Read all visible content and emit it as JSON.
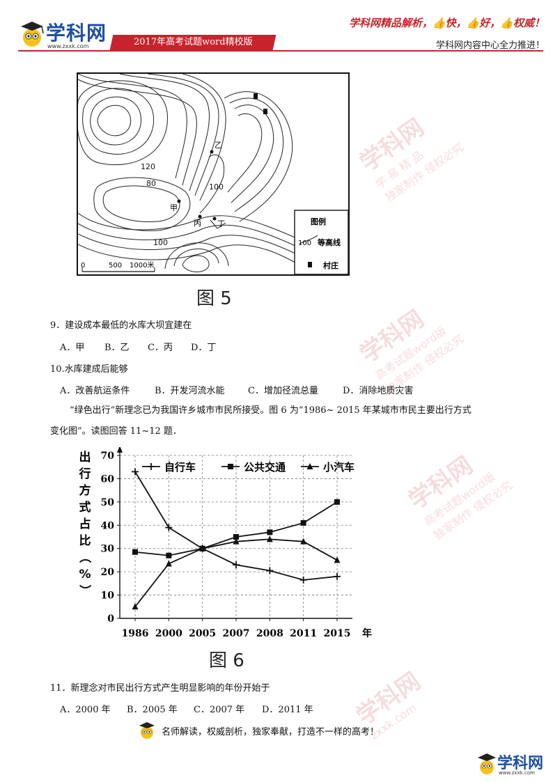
{
  "header": {
    "logo_name": "学科网",
    "logo_url": "www.zxxk.com",
    "banner": "2017年高考试题word精校版",
    "slogan": "学科网精品解析，👍快，👍好，👍权威！",
    "tagline": "学科网内容中心全力推进！"
  },
  "watermark": {
    "big": "学科网",
    "url": "zxxk.com",
    "line1": "学 易 精 品",
    "line2": "高考试题word版",
    "line3": "独家制作 侵权必究"
  },
  "figure5": {
    "caption": "图 5",
    "labels": {
      "c120": "120",
      "c80": "80",
      "c100a": "100",
      "c100b": "100",
      "jia": "甲",
      "yi": "乙",
      "bing": "丙",
      "ding": "丁"
    },
    "scale": {
      "s0": "0",
      "s500": "500",
      "s1000": "1000米"
    },
    "legend": {
      "title": "图例",
      "contour_value": "100",
      "contour_label": "等高线",
      "village_label": "村庄"
    }
  },
  "q9": {
    "stem": "9．建设成本最低的水库大坝宜建在",
    "options": [
      "A．甲",
      "B．乙",
      "C．丙",
      "D．丁"
    ]
  },
  "q10": {
    "stem": "10.水库建成后能够",
    "options": [
      "A．改善航运条件",
      "B．开发河流水能",
      "C．增加径流总量",
      "D．消除地质灾害"
    ]
  },
  "intro": {
    "line1": "“绿色出行”新理念已为我国许乡城市市民所接受。图 6 为“1986~ 2015 年某城市市民主要出行方式",
    "line2": "变化图”。读图回答 11~12 题．"
  },
  "chart_data": {
    "type": "line",
    "categories": [
      "1986",
      "2000",
      "2005",
      "2007",
      "2008",
      "2011",
      "2015"
    ],
    "x_unit": "年",
    "ylabel": "出行方式占比（%）",
    "ylim": [
      0,
      70
    ],
    "yticks": [
      0,
      10,
      20,
      30,
      40,
      50,
      60,
      70
    ],
    "grid": true,
    "legend_position": "top",
    "series": [
      {
        "name": "自行车",
        "marker": "plus",
        "values": [
          63,
          39,
          30,
          23,
          20.5,
          16.5,
          18
        ]
      },
      {
        "name": "公共交通",
        "marker": "square",
        "values": [
          28.5,
          27,
          30,
          35,
          37,
          41,
          50
        ]
      },
      {
        "name": "小汽车",
        "marker": "triangle",
        "values": [
          5,
          23.5,
          30,
          33,
          34,
          33,
          25
        ]
      }
    ],
    "caption": "图 6"
  },
  "q11": {
    "stem": "11．新理念对市民出行方式产生明显影响的年份开始于",
    "options": [
      "A．2000 年",
      "B．2005 年",
      "C．2007 年",
      "D．2011 年"
    ]
  },
  "footer": {
    "text": "名师解读，权威剖析，独家奉献，打造不一样的高考！",
    "logo_name": "学科网",
    "logo_url": "www.zxxk.com"
  }
}
